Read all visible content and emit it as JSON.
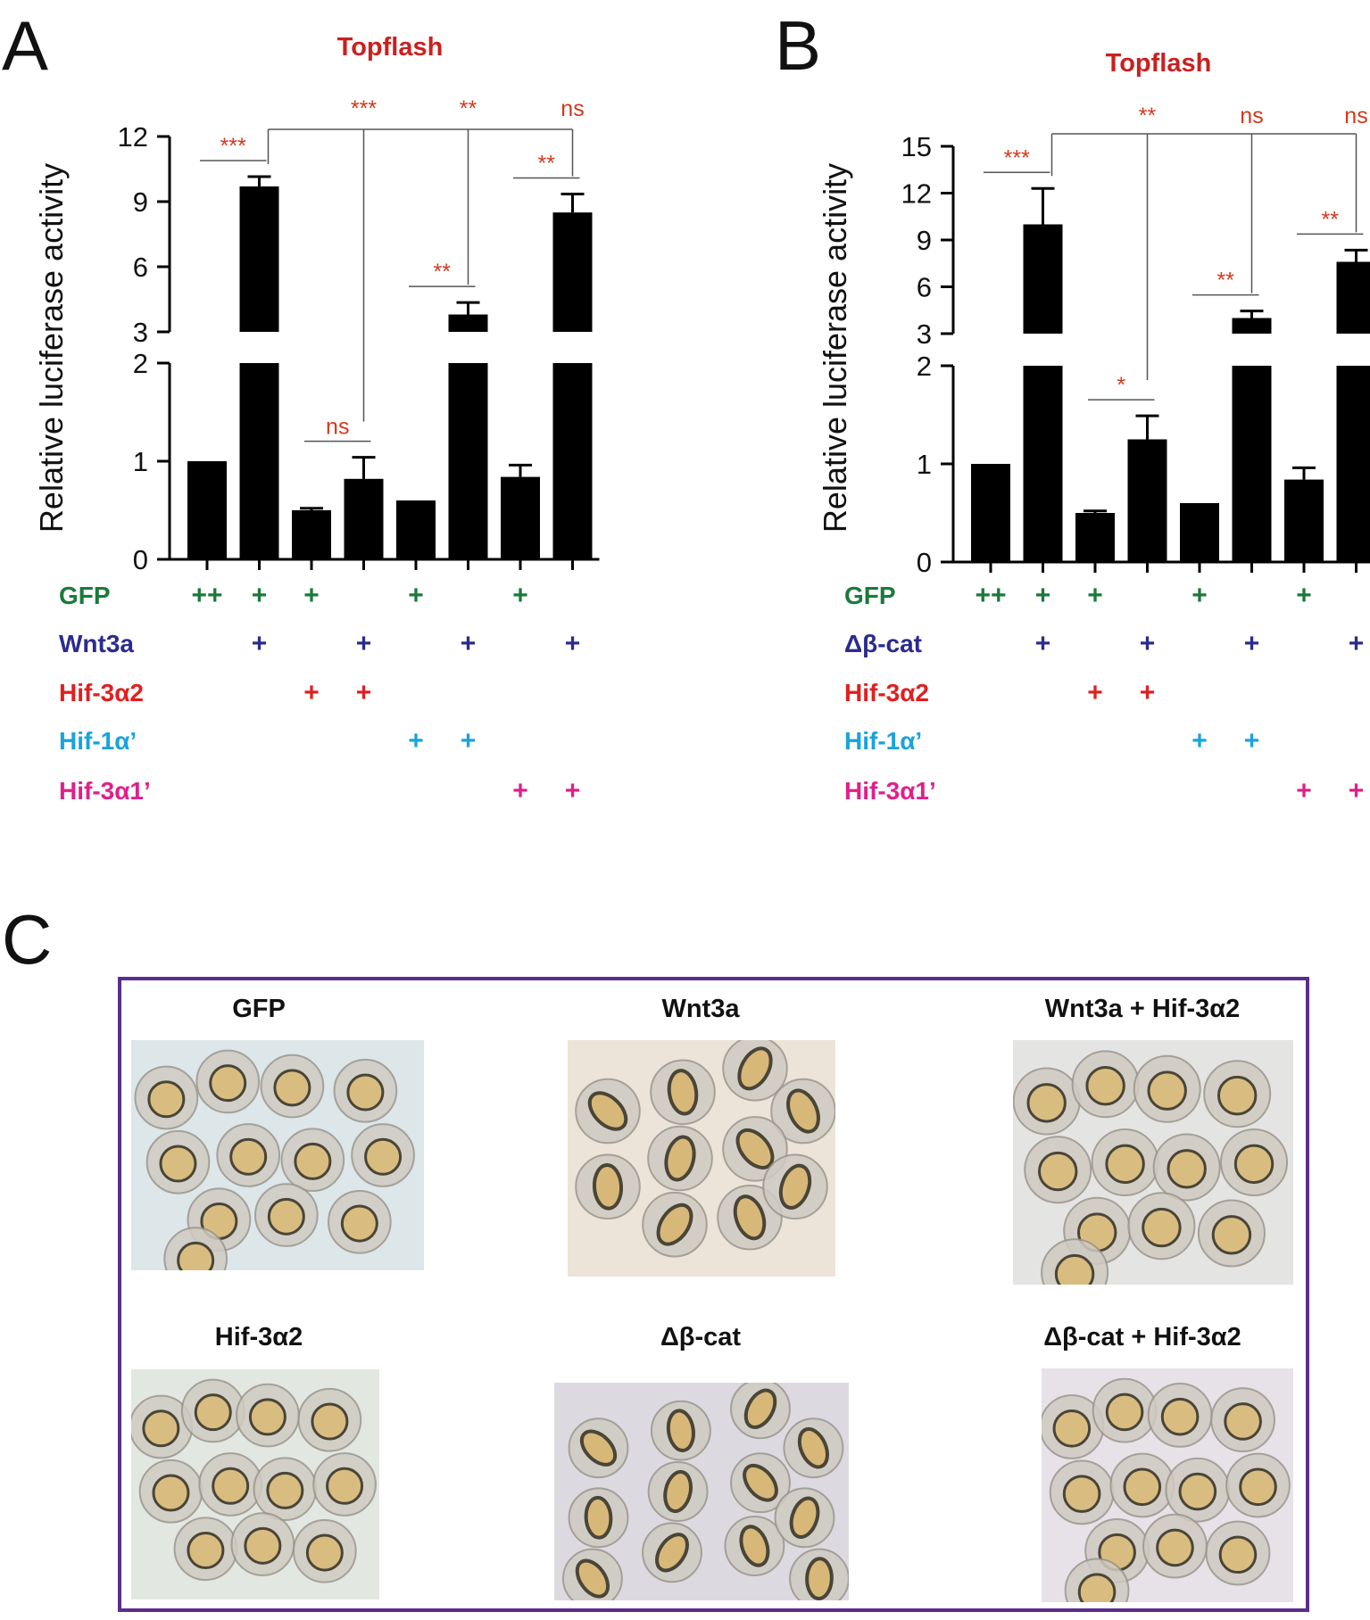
{
  "panels": {
    "A": "A",
    "B": "B",
    "C": "C"
  },
  "chart_data": [
    {
      "type": "bar",
      "panel": "A",
      "title": "Topflash",
      "ylabel": "Relative luciferase activity",
      "broken_axis": true,
      "lower_ylim": [
        0,
        2
      ],
      "upper_ylim": [
        3,
        12
      ],
      "lower_ticks": [
        0,
        1,
        2
      ],
      "upper_ticks": [
        3,
        6,
        9,
        12
      ],
      "values": [
        1.0,
        9.7,
        0.5,
        0.82,
        0.6,
        3.8,
        0.84,
        8.5
      ],
      "errors": [
        0,
        0.45,
        0.02,
        0.22,
        0,
        0.55,
        0.12,
        0.85
      ],
      "conditions": [
        {
          "label": "GFP",
          "color": "#1a7a3a",
          "marks": [
            "++",
            "+",
            "+",
            "",
            "+",
            "",
            "+",
            ""
          ]
        },
        {
          "label": "Wnt3a",
          "color": "#2b2b8f",
          "marks": [
            "",
            "+",
            "",
            "+",
            "",
            "+",
            "",
            "+"
          ]
        },
        {
          "label": "Hif-3α2",
          "color": "#e02020",
          "marks": [
            "",
            "",
            "+",
            "+",
            "",
            "",
            "",
            ""
          ]
        },
        {
          "label": "Hif-1α’",
          "color": "#1aa3dd",
          "marks": [
            "",
            "",
            "",
            "",
            "+",
            "+",
            "",
            ""
          ]
        },
        {
          "label": "Hif-3α1’",
          "color": "#e0208a",
          "marks": [
            "",
            "",
            "",
            "",
            "",
            "",
            "+",
            "+"
          ]
        }
      ],
      "pair_significance": [
        {
          "bars": [
            0,
            1
          ],
          "label": "***"
        },
        {
          "bars": [
            2,
            3
          ],
          "label": "ns"
        },
        {
          "bars": [
            4,
            5
          ],
          "label": "**"
        },
        {
          "bars": [
            6,
            7
          ],
          "label": "**"
        }
      ],
      "bracket_significance": {
        "from_bar": 1,
        "to_bars": [
          3,
          5,
          7
        ],
        "labels": [
          "***",
          "**",
          "ns"
        ]
      }
    },
    {
      "type": "bar",
      "panel": "B",
      "title": "Topflash",
      "ylabel": "Relative luciferase activity",
      "broken_axis": true,
      "lower_ylim": [
        0,
        2
      ],
      "upper_ylim": [
        3,
        15
      ],
      "lower_ticks": [
        0,
        1,
        2
      ],
      "upper_ticks": [
        3,
        6,
        9,
        12,
        15
      ],
      "values": [
        1.0,
        10.0,
        0.5,
        1.25,
        0.6,
        4.0,
        0.84,
        7.6
      ],
      "errors": [
        0,
        2.3,
        0.02,
        0.24,
        0,
        0.45,
        0.12,
        0.75
      ],
      "conditions": [
        {
          "label": "GFP",
          "color": "#1a7a3a",
          "marks": [
            "++",
            "+",
            "+",
            "",
            "+",
            "",
            "+",
            ""
          ]
        },
        {
          "label": "Δβ-cat",
          "color": "#2b2b8f",
          "marks": [
            "",
            "+",
            "",
            "+",
            "",
            "+",
            "",
            "+"
          ]
        },
        {
          "label": "Hif-3α2",
          "color": "#e02020",
          "marks": [
            "",
            "",
            "+",
            "+",
            "",
            "",
            "",
            ""
          ]
        },
        {
          "label": "Hif-1α’",
          "color": "#1aa3dd",
          "marks": [
            "",
            "",
            "",
            "",
            "+",
            "+",
            "",
            ""
          ]
        },
        {
          "label": "Hif-3α1’",
          "color": "#e0208a",
          "marks": [
            "",
            "",
            "",
            "",
            "",
            "",
            "+",
            "+"
          ]
        }
      ],
      "pair_significance": [
        {
          "bars": [
            0,
            1
          ],
          "label": "***"
        },
        {
          "bars": [
            2,
            3
          ],
          "label": "*"
        },
        {
          "bars": [
            4,
            5
          ],
          "label": "**"
        },
        {
          "bars": [
            6,
            7
          ],
          "label": "**"
        }
      ],
      "bracket_significance": {
        "from_bar": 1,
        "to_bars": [
          3,
          5,
          7
        ],
        "labels": [
          "**",
          "ns",
          "ns"
        ]
      }
    }
  ],
  "panel_c": {
    "border_color": "#5b2d8e",
    "images": [
      {
        "title": "GFP",
        "shape": "round",
        "bg": "#dde6e8",
        "count": 12
      },
      {
        "title": "Wnt3a",
        "shape": "elongated",
        "bg": "#ece4d8",
        "count": 10
      },
      {
        "title": "Wnt3a + Hif-3α2",
        "shape": "round",
        "bg": "#e4e4e2",
        "count": 12
      },
      {
        "title": "Hif-3α2",
        "shape": "round",
        "bg": "#e3e7e2",
        "count": 11
      },
      {
        "title": "Δβ-cat",
        "shape": "elongated",
        "bg": "#dcdae0",
        "count": 12
      },
      {
        "title": "Δβ-cat + Hif-3α2",
        "shape": "round",
        "bg": "#e6e2e8",
        "count": 12
      }
    ]
  }
}
